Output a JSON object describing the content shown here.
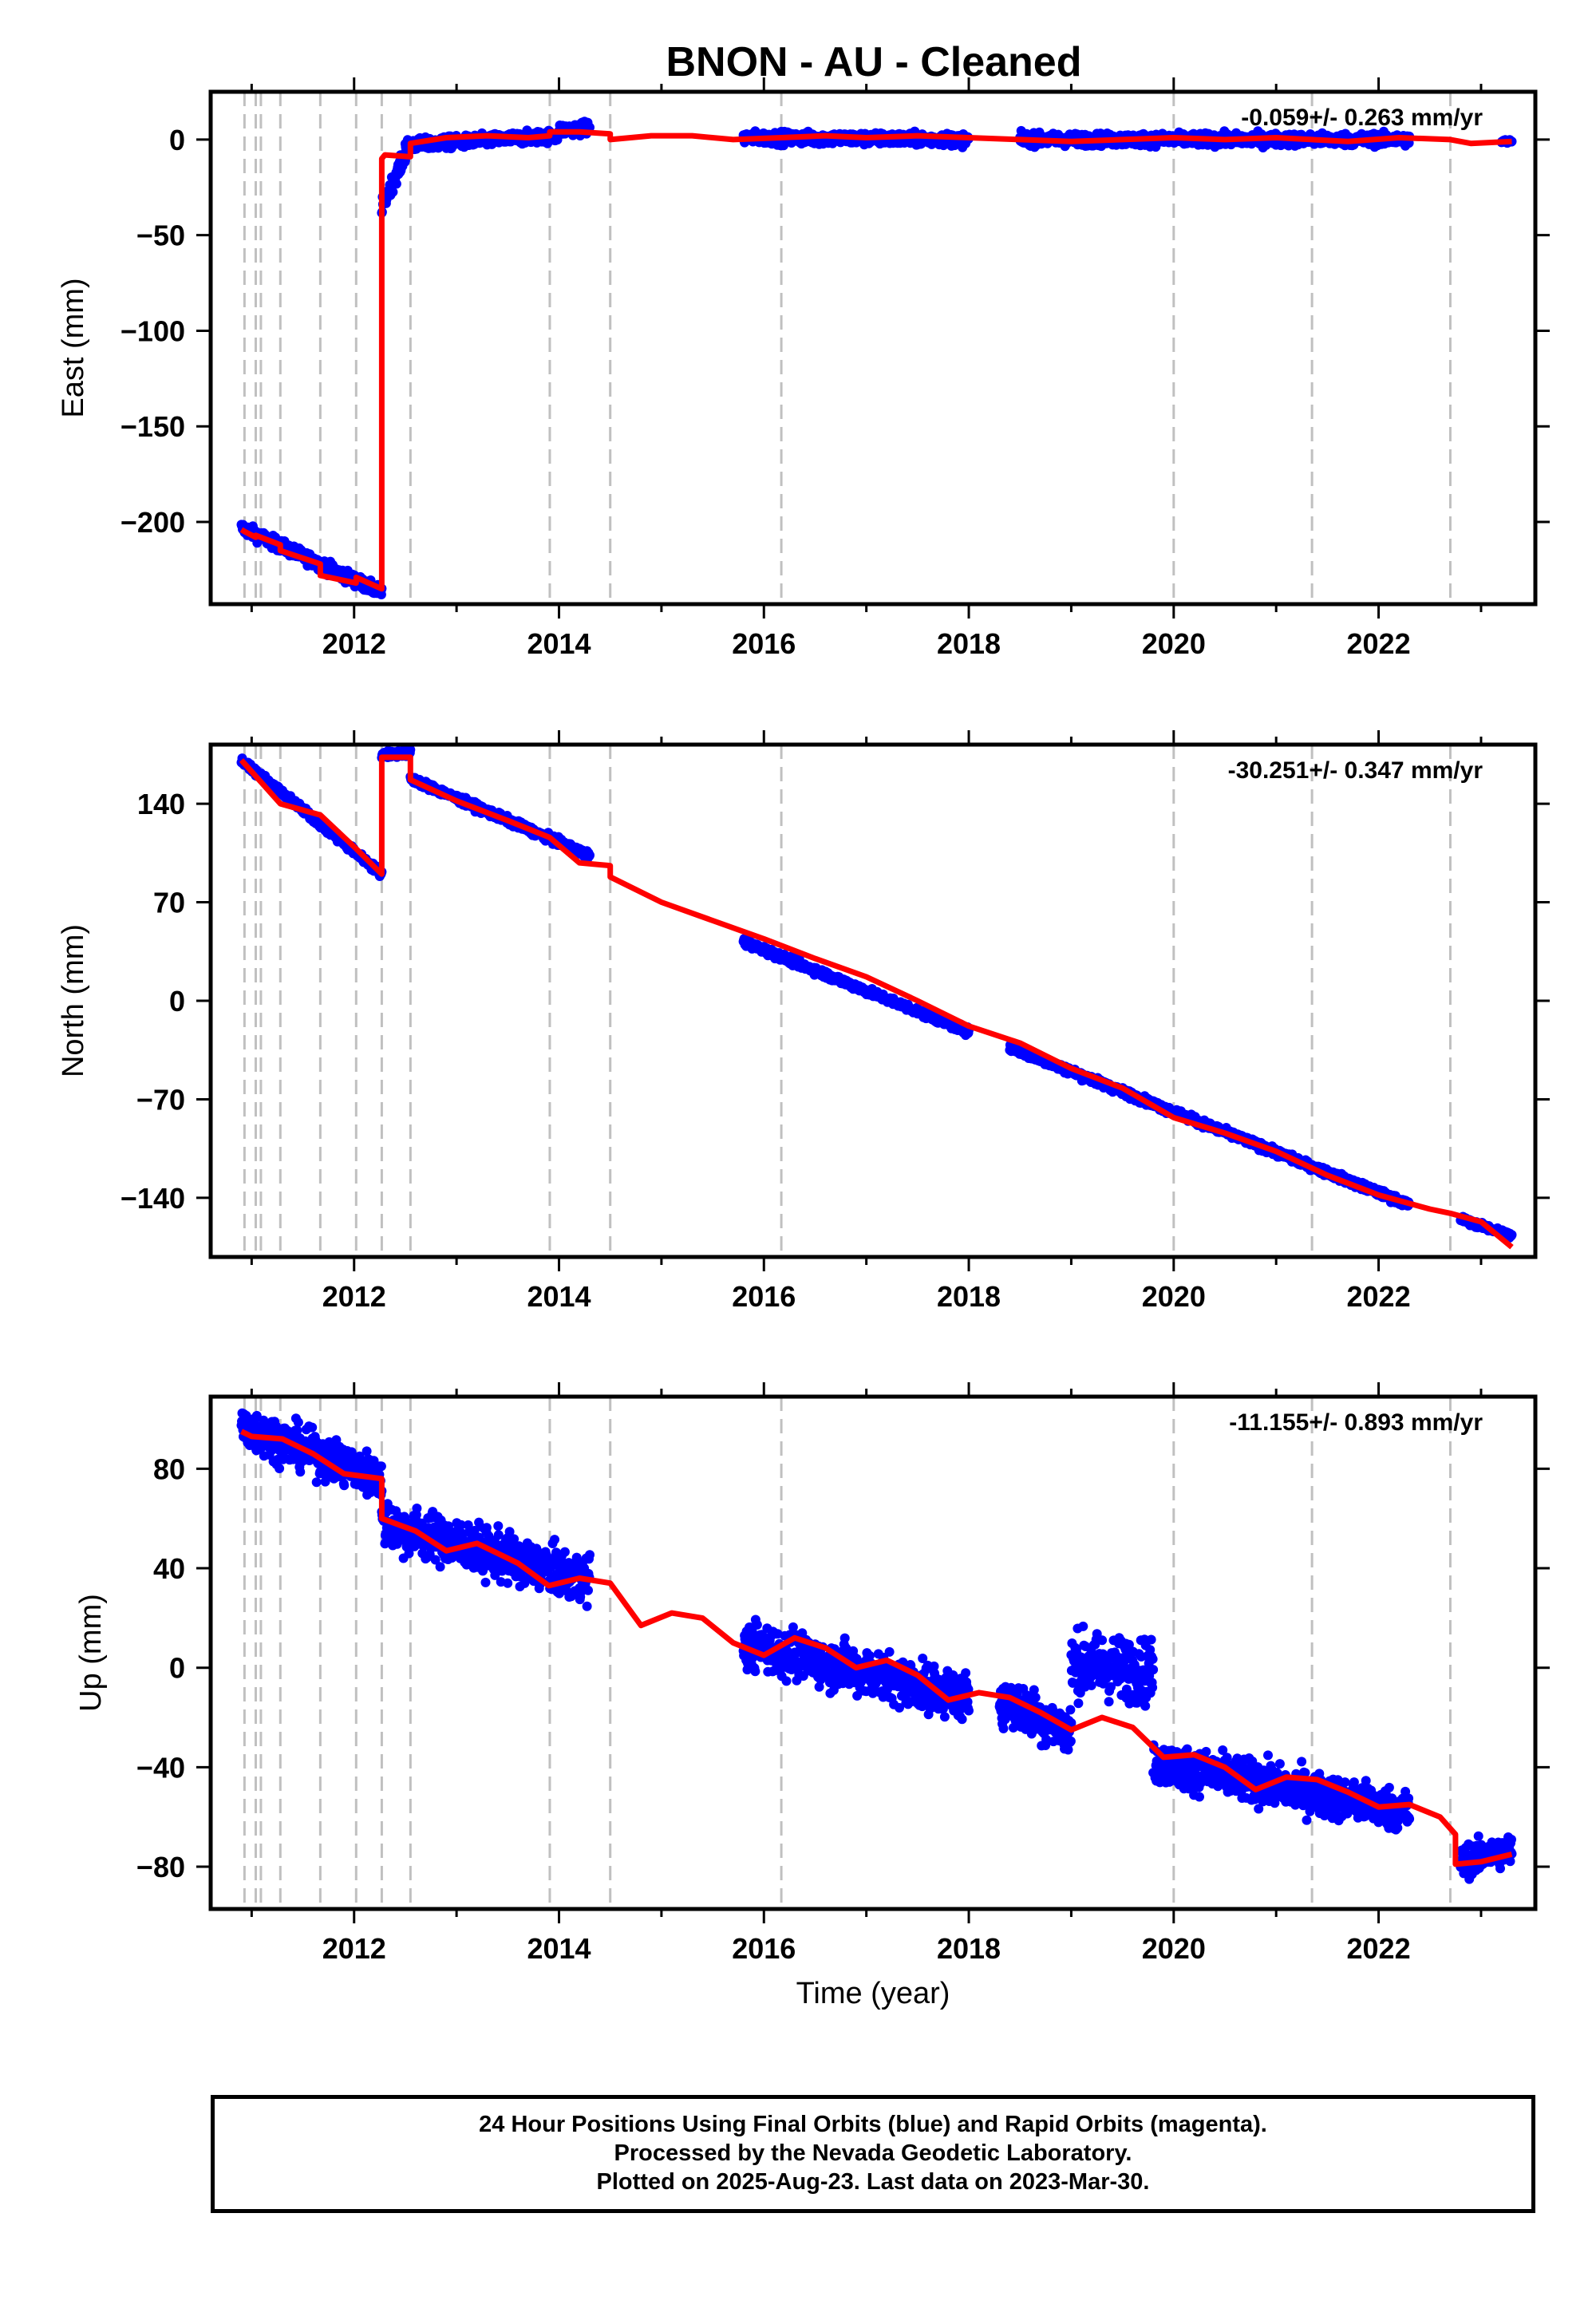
{
  "title": "BNON  - AU - Cleaned",
  "colors": {
    "data": "#0000ff",
    "model": "#ff0000",
    "event_lines": "#c0c0c0",
    "axes": "#000000"
  },
  "event_lines_year": [
    2010.93,
    2011.04,
    2011.09,
    2011.28,
    2011.67,
    2012.02,
    2012.27,
    2012.55,
    2013.91,
    2014.5,
    2016.17,
    2020.0,
    2021.35,
    2022.7
  ],
  "xlabel": "Time (year)",
  "chart_data": [
    {
      "type": "scatter",
      "name": "east",
      "ylabel": "East (mm)",
      "rate_text": "-0.059+/- 0.263 mm/yr",
      "xlim": [
        2010.6,
        2023.53
      ],
      "ylim": [
        -243,
        25
      ],
      "x_ticks": [
        2012,
        2014,
        2016,
        2018,
        2020,
        2022
      ],
      "y_ticks": [
        0,
        -50,
        -100,
        -150,
        -200
      ],
      "x_tick_labels": [
        "2012",
        "2014",
        "2016",
        "2018",
        "2020",
        "2022"
      ],
      "y_tick_labels": [
        "0",
        "−50",
        "−100",
        "−150",
        "−200"
      ],
      "segments": [
        {
          "x0": 2010.9,
          "x1": 2012.27,
          "y0": -203,
          "y1": -237,
          "noise": 3
        },
        {
          "x0": 2012.27,
          "x1": 2012.5,
          "y0": -35,
          "y1": -8,
          "noise": 4
        },
        {
          "x0": 2012.5,
          "x1": 2014.0,
          "y0": -3,
          "y1": 2,
          "noise": 3
        },
        {
          "x0": 2014.0,
          "x1": 2014.3,
          "y0": 5,
          "y1": 6,
          "noise": 3
        },
        {
          "x0": 2015.8,
          "x1": 2018.0,
          "y0": 1,
          "y1": 0,
          "noise": 3
        },
        {
          "x0": 2018.5,
          "x1": 2022.3,
          "y0": 0,
          "y1": 0,
          "noise": 3
        },
        {
          "x0": 2023.2,
          "x1": 2023.3,
          "y0": -1,
          "y1": -1,
          "noise": 1
        }
      ],
      "model": {
        "x": [
          2010.9,
          2010.93,
          2011.04,
          2011.04,
          2011.28,
          2011.28,
          2011.67,
          2011.67,
          2012.02,
          2012.02,
          2012.27,
          2012.27,
          2012.3,
          2012.55,
          2012.55,
          2012.9,
          2013.3,
          2013.7,
          2013.91,
          2013.91,
          2014.2,
          2014.5,
          2014.5,
          2014.9,
          2015.3,
          2015.7,
          2016.17,
          2016.6,
          2017.0,
          2017.5,
          2018.0,
          2018.5,
          2019.0,
          2019.5,
          2020.0,
          2020.5,
          2021.0,
          2021.35,
          2021.7,
          2022.2,
          2022.7,
          2022.9,
          2023.3
        ],
        "y": [
          -204,
          -205,
          -208,
          -207,
          -212,
          -215,
          -222,
          -228,
          -232,
          -229,
          -235,
          -10,
          -8,
          -9,
          -2,
          1,
          2,
          1,
          2,
          4,
          4,
          3,
          0,
          2,
          2,
          0,
          1,
          2,
          1,
          2,
          1,
          0,
          -1,
          0,
          1,
          0,
          1,
          0,
          -1,
          1,
          0,
          -2,
          -1
        ]
      }
    },
    {
      "type": "scatter",
      "name": "north",
      "ylabel": "North (mm)",
      "rate_text": "-30.251+/- 0.347 mm/yr",
      "xlim": [
        2010.6,
        2023.53
      ],
      "ylim": [
        -182,
        182
      ],
      "x_ticks": [
        2012,
        2014,
        2016,
        2018,
        2020,
        2022
      ],
      "y_ticks": [
        140,
        70,
        0,
        -70,
        -140
      ],
      "x_tick_labels": [
        "2012",
        "2014",
        "2016",
        "2018",
        "2020",
        "2022"
      ],
      "y_tick_labels": [
        "140",
        "70",
        "0",
        "−70",
        "−140"
      ],
      "segments": [
        {
          "x0": 2010.9,
          "x1": 2012.27,
          "y0": 171,
          "y1": 90,
          "noise": 2.5
        },
        {
          "x0": 2012.27,
          "x1": 2012.55,
          "y0": 175,
          "y1": 176,
          "noise": 2.5
        },
        {
          "x0": 2012.55,
          "x1": 2014.3,
          "y0": 158,
          "y1": 103,
          "noise": 2.5
        },
        {
          "x0": 2015.8,
          "x1": 2018.0,
          "y0": 42,
          "y1": -22,
          "noise": 2.5
        },
        {
          "x0": 2018.4,
          "x1": 2022.3,
          "y0": -33,
          "y1": -145,
          "noise": 2.5
        },
        {
          "x0": 2022.8,
          "x1": 2023.3,
          "y0": -155,
          "y1": -167,
          "noise": 2
        }
      ],
      "model": {
        "x": [
          2010.9,
          2011.28,
          2011.67,
          2012.02,
          2012.27,
          2012.27,
          2012.55,
          2012.55,
          2013.0,
          2013.5,
          2013.91,
          2014.2,
          2014.5,
          2014.5,
          2015.0,
          2015.5,
          2016.0,
          2016.5,
          2017.0,
          2017.5,
          2018.0,
          2018.5,
          2019.0,
          2019.5,
          2020.0,
          2020.5,
          2021.0,
          2021.5,
          2022.0,
          2022.5,
          2022.7,
          2023.0,
          2023.3
        ],
        "y": [
          171,
          140,
          132,
          108,
          90,
          173,
          173,
          157,
          142,
          128,
          116,
          98,
          96,
          88,
          70,
          57,
          44,
          30,
          17,
          0,
          -18,
          -30,
          -48,
          -62,
          -83,
          -94,
          -107,
          -124,
          -138,
          -148,
          -151,
          -157,
          -175
        ]
      }
    },
    {
      "type": "scatter",
      "name": "up",
      "ylabel": "Up (mm)",
      "rate_text": "-11.155+/- 0.893 mm/yr",
      "xlim": [
        2010.6,
        2023.53
      ],
      "ylim": [
        -97,
        109
      ],
      "x_ticks": [
        2012,
        2014,
        2016,
        2018,
        2020,
        2022
      ],
      "y_ticks": [
        80,
        40,
        0,
        -40,
        -80
      ],
      "x_tick_labels": [
        "2012",
        "2014",
        "2016",
        "2018",
        "2020",
        "2022"
      ],
      "y_tick_labels": [
        "80",
        "40",
        "0",
        "−40",
        "−80"
      ],
      "segments": [
        {
          "x0": 2010.9,
          "x1": 2012.27,
          "y0": 97,
          "y1": 76,
          "noise": 8
        },
        {
          "x0": 2012.27,
          "x1": 2014.3,
          "y0": 58,
          "y1": 35,
          "noise": 9
        },
        {
          "x0": 2015.8,
          "x1": 2018.0,
          "y0": 10,
          "y1": -12,
          "noise": 9
        },
        {
          "x0": 2018.3,
          "x1": 2019.0,
          "y0": -12,
          "y1": -26,
          "noise": 9
        },
        {
          "x0": 2019.0,
          "x1": 2019.8,
          "y0": 2,
          "y1": -2,
          "noise": 12
        },
        {
          "x0": 2019.8,
          "x1": 2022.3,
          "y0": -38,
          "y1": -58,
          "noise": 8
        },
        {
          "x0": 2022.8,
          "x1": 2023.3,
          "y0": -78,
          "y1": -73,
          "noise": 6
        }
      ],
      "model": {
        "x": [
          2010.9,
          2011.0,
          2011.3,
          2011.6,
          2011.9,
          2012.27,
          2012.27,
          2012.6,
          2012.9,
          2013.2,
          2013.6,
          2013.9,
          2014.2,
          2014.5,
          2014.8,
          2015.1,
          2015.4,
          2015.7,
          2016.0,
          2016.3,
          2016.6,
          2016.9,
          2017.2,
          2017.5,
          2017.8,
          2018.1,
          2018.4,
          2018.7,
          2019.0,
          2019.3,
          2019.6,
          2019.9,
          2020.2,
          2020.5,
          2020.8,
          2021.1,
          2021.4,
          2021.7,
          2022.0,
          2022.3,
          2022.6,
          2022.75,
          2022.75,
          2023.0,
          2023.3
        ],
        "y": [
          95,
          93,
          92,
          86,
          78,
          76,
          60,
          55,
          47,
          50,
          42,
          33,
          36,
          34,
          17,
          22,
          20,
          10,
          5,
          12,
          8,
          0,
          3,
          -3,
          -13,
          -10,
          -12,
          -18,
          -25,
          -20,
          -24,
          -36,
          -35,
          -40,
          -49,
          -44,
          -45,
          -50,
          -56,
          -55,
          -60,
          -67,
          -79,
          -78,
          -75
        ]
      }
    }
  ],
  "footer": {
    "line1": "24 Hour Positions Using Final Orbits (blue) and Rapid Orbits (magenta).",
    "line2": "Processed by the Nevada Geodetic Laboratory.",
    "line3": "Plotted on 2025-Aug-23. Last data on 2023-Mar-30."
  }
}
